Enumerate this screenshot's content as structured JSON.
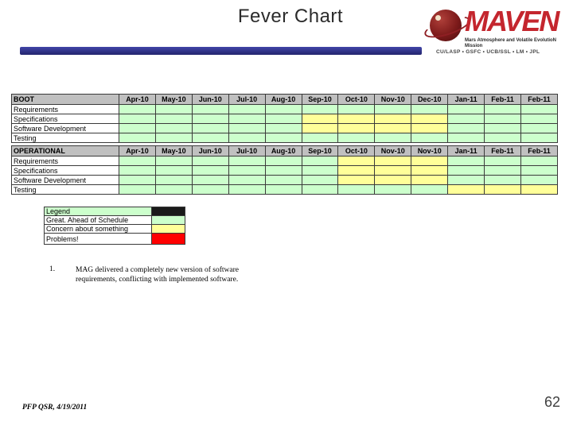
{
  "slide": {
    "title": "Fever Chart",
    "footer": "PFP QSR, 4/19/2011",
    "page_number": "62"
  },
  "logo": {
    "name": "MAVEN",
    "tagline": "Mars Atmosphere and Volatile EvolutioN Mission",
    "orgs": "CU/LASP • GSFC • UCB/SSL • LM • JPL"
  },
  "colors": {
    "green": "#ccffcc",
    "yellow": "#ffff99",
    "red": "#ff0000",
    "header_grey": "#c0c0c0",
    "bar_blue": "#2e3192"
  },
  "boot_table": {
    "title": "BOOT",
    "months": [
      "Apr-10",
      "May-10",
      "Jun-10",
      "Jul-10",
      "Aug-10",
      "Sep-10",
      "Oct-10",
      "Nov-10",
      "Dec-10",
      "Jan-11",
      "Feb-11",
      "Feb-11"
    ],
    "rows": [
      {
        "label": "Requirements",
        "cells": [
          "g",
          "g",
          "g",
          "g",
          "g",
          "g",
          "g",
          "g",
          "g",
          "g",
          "g",
          "g"
        ]
      },
      {
        "label": "Specifications",
        "cells": [
          "g",
          "g",
          "g",
          "g",
          "g",
          "y",
          "y",
          "y",
          "y",
          "g",
          "g",
          "g"
        ]
      },
      {
        "label": "Software Development",
        "cells": [
          "g",
          "g",
          "g",
          "g",
          "g",
          "y",
          "y",
          "y",
          "y",
          "g",
          "g",
          "g"
        ]
      },
      {
        "label": "Testing",
        "cells": [
          "g",
          "g",
          "g",
          "g",
          "g",
          "g",
          "g",
          "g",
          "g",
          "g",
          "g",
          "g"
        ]
      }
    ]
  },
  "operational_table": {
    "title": "OPERATIONAL",
    "months": [
      "Apr-10",
      "May-10",
      "Jun-10",
      "Jul-10",
      "Aug-10",
      "Sep-10",
      "Oct-10",
      "Nov-10",
      "Nov-10",
      "Jan-11",
      "Feb-11",
      "Feb-11"
    ],
    "rows": [
      {
        "label": "Requirements",
        "cells": [
          "g",
          "g",
          "g",
          "g",
          "g",
          "g",
          "y",
          "y",
          "y",
          "g",
          "g",
          "g"
        ]
      },
      {
        "label": "Specifications",
        "cells": [
          "g",
          "g",
          "g",
          "g",
          "g",
          "g",
          "y",
          "y",
          "y",
          "g",
          "g",
          "g"
        ]
      },
      {
        "label": "Software Development",
        "cells": [
          "g",
          "g",
          "g",
          "g",
          "g",
          "g",
          "y",
          "y",
          "y",
          "g",
          "g",
          "g"
        ]
      },
      {
        "label": "Testing",
        "cells": [
          "g",
          "g",
          "g",
          "g",
          "g",
          "g",
          "g",
          "g",
          "g",
          "y",
          "y",
          "y"
        ]
      }
    ]
  },
  "legend": {
    "header": "Legend",
    "items": [
      {
        "label": "Great. Ahead of Schedule",
        "color": "green"
      },
      {
        "label": "Concern about something",
        "color": "yellow"
      },
      {
        "label": "Problems!",
        "color": "red"
      }
    ]
  },
  "note": {
    "number": "1.",
    "text": "MAG delivered a completely new version of software requirements, conflicting with implemented software."
  }
}
